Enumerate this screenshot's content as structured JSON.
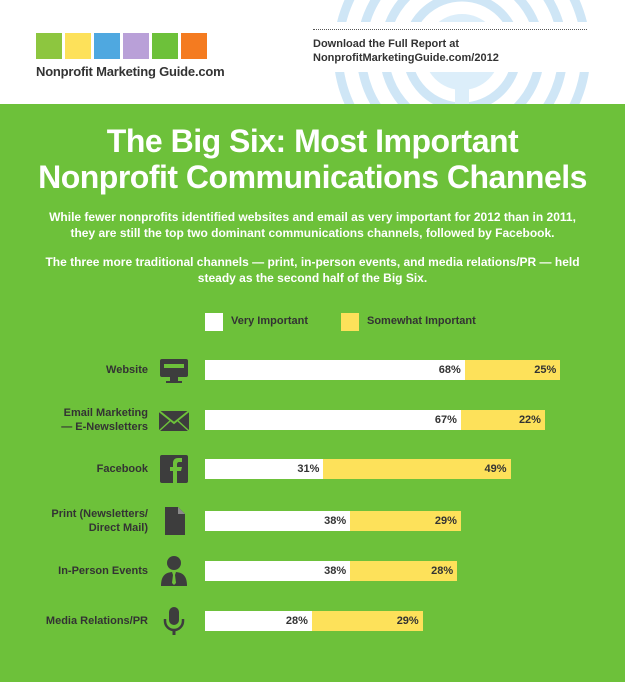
{
  "header": {
    "brand": "Nonprofit Marketing Guide.com",
    "download_line1": "Download the Full Report at",
    "download_line2": "NonprofitMarketingGuide.com/2012",
    "logo_colors": [
      "#8dc63f",
      "#fde15a",
      "#4fa8e0",
      "#b9a0d8",
      "#6dc13a",
      "#f47b20"
    ]
  },
  "title_line1": "The Big Six: Most Important",
  "title_line2": "Nonprofit Communications Channels",
  "paragraph1": "While fewer nonprofits identified websites and email as very important for 2012 than in 2011, they are still the top two dominant communications channels, followed by Facebook.",
  "paragraph2": "The three more traditional channels — print, in-person events, and media relations/PR — held steady as the second half of the Big Six.",
  "colors": {
    "background": "#6dc13a",
    "very_important": "#ffffff",
    "somewhat_important": "#fde15a",
    "icon_dark": "#3d3d3d"
  },
  "chart_data": {
    "type": "bar",
    "orientation": "horizontal",
    "stacked": true,
    "legend": "top",
    "categories": [
      {
        "lines": [
          "Website"
        ],
        "icon": "monitor-icon"
      },
      {
        "lines": [
          "Email Marketing",
          "— E-Newsletters"
        ],
        "icon": "envelope-icon"
      },
      {
        "lines": [
          "Facebook"
        ],
        "icon": "facebook-icon"
      },
      {
        "lines": [
          "Print (Newsletters/",
          "Direct Mail)"
        ],
        "icon": "document-icon"
      },
      {
        "lines": [
          "In-Person Events"
        ],
        "icon": "person-icon"
      },
      {
        "lines": [
          "Media Relations/PR"
        ],
        "icon": "microphone-icon"
      }
    ],
    "series": [
      {
        "name": "Very Important",
        "color": "#ffffff",
        "values": [
          68,
          67,
          31,
          38,
          38,
          28
        ],
        "labels": [
          "68%",
          "67%",
          "31%",
          "38%",
          "38%",
          "28%"
        ]
      },
      {
        "name": "Somewhat Important",
        "color": "#fde15a",
        "values": [
          25,
          22,
          49,
          29,
          28,
          29
        ],
        "labels": [
          "25%",
          "22%",
          "49%",
          "29%",
          "28%",
          "29%"
        ]
      }
    ]
  }
}
